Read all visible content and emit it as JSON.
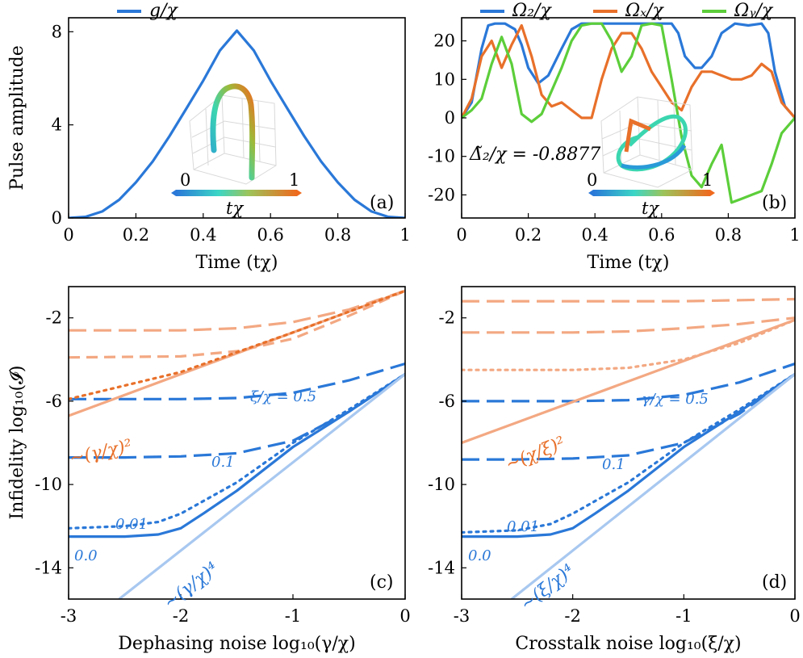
{
  "chart_data": [
    {
      "panel": "a",
      "type": "line",
      "panel_label": "(a)",
      "xlabel": "Time (tχ)",
      "ylabel": "Pulse amplitude",
      "xlim": [
        0,
        1
      ],
      "ylim": [
        0,
        8.6
      ],
      "xticks": [
        0,
        0.2,
        0.4,
        0.6,
        0.8,
        1
      ],
      "xtick_labels": [
        "0",
        "0.2",
        "0.4",
        "0.6",
        "0.8",
        "1"
      ],
      "yticks": [
        0,
        4,
        8
      ],
      "ytick_labels": [
        "0",
        "4",
        "8"
      ],
      "legend": [
        {
          "label": "g/χ",
          "color": "#2a78d8"
        }
      ],
      "series": [
        {
          "name": "g/χ",
          "color": "#2a78d8",
          "x": [
            0,
            0.05,
            0.1,
            0.15,
            0.2,
            0.25,
            0.3,
            0.35,
            0.4,
            0.45,
            0.5,
            0.55,
            0.6,
            0.65,
            0.7,
            0.75,
            0.8,
            0.85,
            0.9,
            0.95,
            1
          ],
          "y": [
            0,
            0.05,
            0.28,
            0.78,
            1.53,
            2.43,
            3.52,
            4.7,
            5.9,
            7.2,
            8.05,
            7.2,
            5.9,
            4.7,
            3.52,
            2.43,
            1.53,
            0.78,
            0.28,
            0.05,
            0
          ]
        }
      ],
      "inset": {
        "colorbar_min": "0",
        "colorbar_max": "1",
        "colorbar_label": "tχ"
      }
    },
    {
      "panel": "b",
      "type": "line",
      "panel_label": "(b)",
      "xlabel": "Time (tχ)",
      "xlim": [
        0,
        1
      ],
      "ylim": [
        -26,
        26
      ],
      "xticks": [
        0,
        0.2,
        0.4,
        0.6,
        0.8,
        1
      ],
      "xtick_labels": [
        "0",
        "0.2",
        "0.4",
        "0.6",
        "0.8",
        "1"
      ],
      "yticks": [
        -20,
        -10,
        0,
        10,
        20
      ],
      "ytick_labels": [
        "-20",
        "-10",
        "0",
        "10",
        "20"
      ],
      "legend": [
        {
          "label": "Ω₂/χ",
          "color": "#2a78d8"
        },
        {
          "label": "Ωₓ/χ",
          "color": "#e8702a"
        },
        {
          "label": "Ωᵧ/χ",
          "color": "#5cce3a"
        }
      ],
      "annotation": "Δ̃₂/χ = -0.8877",
      "series": [
        {
          "name": "Ω₂/χ",
          "color": "#2a78d8",
          "x": [
            0,
            0.03,
            0.06,
            0.08,
            0.1,
            0.13,
            0.16,
            0.18,
            0.2,
            0.23,
            0.26,
            0.3,
            0.33,
            0.36,
            0.4,
            0.45,
            0.5,
            0.55,
            0.6,
            0.63,
            0.65,
            0.67,
            0.7,
            0.72,
            0.75,
            0.78,
            0.82,
            0.86,
            0.9,
            0.92,
            0.94,
            0.97,
            1
          ],
          "y": [
            0,
            4,
            18,
            24,
            24.5,
            24.5,
            23,
            19,
            13,
            9,
            11,
            18,
            23,
            24.5,
            24.5,
            24.5,
            24.5,
            24.5,
            24.5,
            24.5,
            22,
            16,
            13,
            13,
            16,
            22,
            24.5,
            24,
            24.5,
            22,
            12,
            3,
            0
          ]
        },
        {
          "name": "Ωₓ/χ",
          "color": "#e8702a",
          "x": [
            0,
            0.03,
            0.06,
            0.09,
            0.12,
            0.15,
            0.18,
            0.21,
            0.24,
            0.27,
            0.3,
            0.33,
            0.36,
            0.39,
            0.42,
            0.45,
            0.48,
            0.51,
            0.54,
            0.57,
            0.6,
            0.63,
            0.66,
            0.69,
            0.72,
            0.75,
            0.78,
            0.81,
            0.84,
            0.87,
            0.9,
            0.93,
            0.96,
            1
          ],
          "y": [
            0,
            5,
            16,
            20,
            13,
            19,
            24,
            16,
            6,
            3,
            4,
            2,
            0,
            0,
            10,
            18,
            22,
            22,
            18,
            12,
            8,
            4,
            2,
            8,
            12,
            12,
            11,
            10,
            10,
            11,
            14,
            12,
            4,
            0
          ]
        },
        {
          "name": "Ωᵧ/χ",
          "color": "#5cce3a",
          "x": [
            0,
            0.03,
            0.06,
            0.09,
            0.12,
            0.15,
            0.18,
            0.21,
            0.24,
            0.27,
            0.3,
            0.33,
            0.36,
            0.39,
            0.42,
            0.45,
            0.48,
            0.51,
            0.54,
            0.57,
            0.6,
            0.63,
            0.66,
            0.69,
            0.72,
            0.75,
            0.78,
            0.81,
            0.84,
            0.87,
            0.9,
            0.93,
            0.96,
            1
          ],
          "y": [
            0,
            2,
            5,
            14,
            21,
            14,
            1,
            -1,
            1,
            7,
            13,
            20,
            24,
            24.5,
            24.5,
            20,
            12,
            16,
            24,
            24.5,
            24,
            10,
            -5,
            -15,
            -18,
            -12,
            -7,
            -22,
            -21,
            -20,
            -19,
            -12,
            -4,
            0
          ]
        }
      ],
      "inset": {
        "colorbar_min": "0",
        "colorbar_max": "1",
        "colorbar_label": "tχ"
      }
    },
    {
      "panel": "c",
      "type": "line",
      "panel_label": "(c)",
      "xlabel": "Dephasing noise log₁₀(γ/χ)",
      "ylabel": "Infidelity log₁₀(𝓘)",
      "xlim": [
        -3,
        0
      ],
      "ylim": [
        -15.5,
        -0.5
      ],
      "xticks": [
        -3,
        -2,
        -1,
        0
      ],
      "xtick_labels": [
        "-3",
        "-2",
        "-1",
        "0"
      ],
      "yticks": [
        -14,
        -10,
        -6,
        -2
      ],
      "ytick_labels": [
        "-14",
        "-10",
        "-6",
        "-2"
      ],
      "annotations": [
        {
          "text": "ξ/χ = 0.5",
          "color": "#2a78d8"
        },
        {
          "text": "0.1",
          "color": "#2a78d8"
        },
        {
          "text": "0.01",
          "color": "#2a78d8"
        },
        {
          "text": "0.0",
          "color": "#2a78d8"
        },
        {
          "text": "~(γ/χ)²",
          "color": "#e8702a"
        },
        {
          "text": "~(γ/χ)⁴",
          "color": "#2a78d8"
        }
      ],
      "series": [
        {
          "name": "blue 0.5",
          "color": "#2a78d8",
          "dash": "long",
          "x": [
            -3,
            -2.5,
            -2,
            -1.5,
            -1,
            -0.5,
            0
          ],
          "y": [
            -5.9,
            -5.9,
            -5.9,
            -5.85,
            -5.6,
            -5.0,
            -4.2
          ]
        },
        {
          "name": "blue 0.1",
          "color": "#2a78d8",
          "dash": "long",
          "x": [
            -3,
            -2.5,
            -2,
            -1.5,
            -1,
            -0.5,
            0
          ],
          "y": [
            -8.7,
            -8.7,
            -8.65,
            -8.5,
            -7.9,
            -6.5,
            -4.7
          ]
        },
        {
          "name": "blue 0.01",
          "color": "#2a78d8",
          "dash": "dotted",
          "x": [
            -3,
            -2.5,
            -2.2,
            -2,
            -1.8,
            -1.5,
            -1,
            -0.5,
            0
          ],
          "y": [
            -12.1,
            -12.0,
            -11.8,
            -11.4,
            -10.8,
            -9.9,
            -8.0,
            -6.4,
            -4.7
          ]
        },
        {
          "name": "blue 0.0",
          "color": "#2a78d8",
          "dash": "solid",
          "x": [
            -3,
            -2.5,
            -2.2,
            -2,
            -1.8,
            -1.5,
            -1,
            -0.5,
            0
          ],
          "y": [
            -12.5,
            -12.5,
            -12.4,
            -12.1,
            -11.4,
            -10.3,
            -8.2,
            -6.5,
            -4.7
          ]
        },
        {
          "name": "blue ref ~(γ/χ)⁴",
          "color": "#a8c8f0",
          "dash": "solid",
          "x": [
            -2.55,
            0
          ],
          "y": [
            -15.5,
            -4.7
          ]
        },
        {
          "name": "orange ref ~(γ/χ)²",
          "color": "#f3a882",
          "dash": "solid",
          "x": [
            -3,
            0
          ],
          "y": [
            -6.7,
            -0.7
          ]
        },
        {
          "name": "orange top",
          "color": "#f3a882",
          "dash": "long",
          "x": [
            -3,
            -2,
            -1.5,
            -1,
            -0.5,
            0
          ],
          "y": [
            -2.6,
            -2.6,
            -2.5,
            -2.2,
            -1.6,
            -0.7
          ]
        },
        {
          "name": "orange 2",
          "color": "#f3a882",
          "dash": "medium",
          "x": [
            -3,
            -2,
            -1.5,
            -1,
            -0.5,
            0
          ],
          "y": [
            -3.9,
            -3.85,
            -3.6,
            -3.0,
            -1.9,
            -0.7
          ]
        },
        {
          "name": "orange 3",
          "color": "#e8702a",
          "dash": "dotted",
          "x": [
            -3,
            -2,
            -1,
            0
          ],
          "y": [
            -5.9,
            -4.6,
            -2.7,
            -0.7
          ]
        }
      ]
    },
    {
      "panel": "d",
      "type": "line",
      "panel_label": "(d)",
      "xlabel": "Crosstalk noise log₁₀(ξ/χ)",
      "xlim": [
        -3,
        0
      ],
      "ylim": [
        -15.5,
        -0.5
      ],
      "xticks": [
        -3,
        -2,
        -1,
        0
      ],
      "xtick_labels": [
        "-3",
        "-2",
        "-1",
        "0"
      ],
      "yticks": [
        -14,
        -10,
        -6,
        -2
      ],
      "ytick_labels": [
        "-14",
        "-10",
        "-6",
        "-2"
      ],
      "annotations": [
        {
          "text": "γ/χ = 0.5",
          "color": "#2a78d8"
        },
        {
          "text": "0.1",
          "color": "#2a78d8"
        },
        {
          "text": "0.01",
          "color": "#2a78d8"
        },
        {
          "text": "0.0",
          "color": "#2a78d8"
        },
        {
          "text": "~(χ/ξ)²",
          "color": "#e8702a"
        },
        {
          "text": "~(ξ/χ)⁴",
          "color": "#2a78d8"
        }
      ],
      "series": [
        {
          "name": "blue 0.5",
          "color": "#2a78d8",
          "dash": "long",
          "x": [
            -3,
            -2.5,
            -2,
            -1.5,
            -1,
            -0.5,
            0
          ],
          "y": [
            -6.0,
            -6.0,
            -6.0,
            -5.95,
            -5.7,
            -5.1,
            -4.2
          ]
        },
        {
          "name": "blue 0.1",
          "color": "#2a78d8",
          "dash": "long",
          "x": [
            -3,
            -2.5,
            -2,
            -1.5,
            -1,
            -0.5,
            0
          ],
          "y": [
            -8.8,
            -8.8,
            -8.75,
            -8.6,
            -8.0,
            -6.6,
            -4.7
          ]
        },
        {
          "name": "blue 0.01",
          "color": "#2a78d8",
          "dash": "dotted",
          "x": [
            -3,
            -2.5,
            -2.2,
            -2,
            -1.8,
            -1.5,
            -1,
            -0.5,
            0
          ],
          "y": [
            -12.3,
            -12.2,
            -11.9,
            -11.4,
            -10.8,
            -9.9,
            -8.0,
            -6.4,
            -4.7
          ]
        },
        {
          "name": "blue 0.0",
          "color": "#2a78d8",
          "dash": "solid",
          "x": [
            -3,
            -2.5,
            -2.2,
            -2,
            -1.8,
            -1.5,
            -1,
            -0.5,
            0
          ],
          "y": [
            -12.5,
            -12.5,
            -12.4,
            -12.1,
            -11.4,
            -10.3,
            -8.2,
            -6.5,
            -4.7
          ]
        },
        {
          "name": "blue ref ~(ξ/χ)⁴",
          "color": "#a8c8f0",
          "dash": "solid",
          "x": [
            -2.55,
            0
          ],
          "y": [
            -15.5,
            -4.7
          ]
        },
        {
          "name": "orange ref ~(χ/ξ)²",
          "color": "#f3a882",
          "dash": "solid",
          "x": [
            -3,
            0
          ],
          "y": [
            -8.0,
            -2.1
          ]
        },
        {
          "name": "orange top",
          "color": "#f3a882",
          "dash": "long",
          "x": [
            -3,
            -1.5,
            -1,
            -0.5,
            0
          ],
          "y": [
            -1.2,
            -1.2,
            -1.2,
            -1.15,
            -1.1
          ]
        },
        {
          "name": "orange 2",
          "color": "#f3a882",
          "dash": "long",
          "x": [
            -3,
            -2,
            -1.5,
            -1,
            -0.5,
            0
          ],
          "y": [
            -2.7,
            -2.7,
            -2.65,
            -2.5,
            -2.3,
            -2.0
          ]
        },
        {
          "name": "orange 3",
          "color": "#f3a882",
          "dash": "dotted",
          "x": [
            -3,
            -2,
            -1.5,
            -1,
            -0.5,
            0
          ],
          "y": [
            -4.5,
            -4.5,
            -4.4,
            -4.0,
            -3.2,
            -2.1
          ]
        }
      ]
    }
  ]
}
